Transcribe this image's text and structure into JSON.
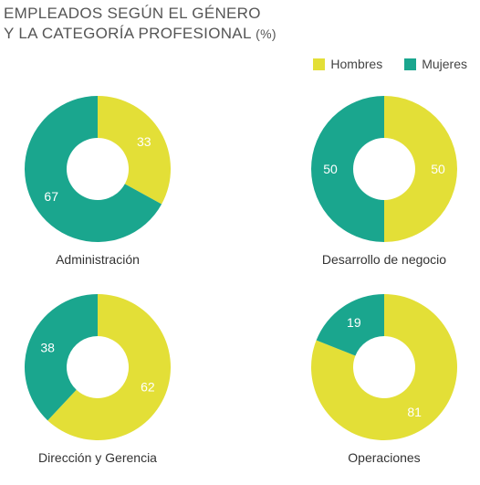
{
  "title_line1": "EMPLEADOS SEGÚN EL GÉNERO",
  "title_line2": "Y LA CATEGORÍA PROFESIONAL",
  "title_unit": "(%)",
  "legend": [
    {
      "name": "Hombres",
      "color": "#e3df37"
    },
    {
      "name": "Mujeres",
      "color": "#1aa68e"
    }
  ],
  "chart_data": [
    {
      "type": "pie",
      "title": "Administración",
      "categories": [
        "Hombres",
        "Mujeres"
      ],
      "values": [
        33,
        67
      ]
    },
    {
      "type": "pie",
      "title": "Desarrollo de negocio",
      "categories": [
        "Hombres",
        "Mujeres"
      ],
      "values": [
        50,
        50
      ]
    },
    {
      "type": "pie",
      "title": "Dirección y Gerencia",
      "categories": [
        "Hombres",
        "Mujeres"
      ],
      "values": [
        62,
        38
      ]
    },
    {
      "type": "pie",
      "title": "Operaciones",
      "categories": [
        "Hombres",
        "Mujeres"
      ],
      "values": [
        81,
        19
      ]
    }
  ]
}
